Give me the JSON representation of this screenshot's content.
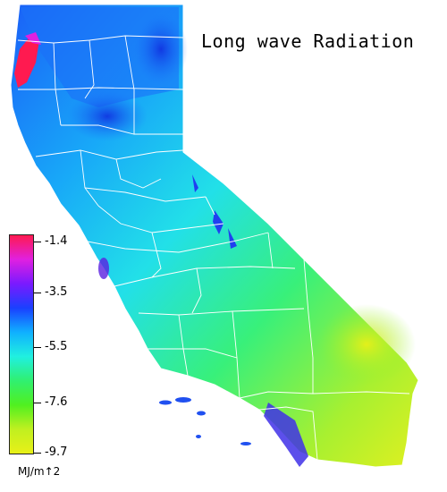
{
  "map": {
    "title": "Long wave Radiation",
    "region": "California",
    "colors": {
      "background": "#ffffff",
      "county_borders": "#ffffff",
      "high_loss": "#0a40f0",
      "mid": "#20d8f0",
      "low_loss": "#dcf020",
      "max": "#ff1a50"
    }
  },
  "legend": {
    "units": "MJ/m↑2",
    "ticks": [
      "-1.4",
      "-3.5",
      "-5.5",
      "-7.6",
      "-9.7"
    ],
    "gradient_stops": [
      "#ff1a50",
      "#e020e0",
      "#7a1aff",
      "#1a40ff",
      "#10b0ff",
      "#20f0e0",
      "#30f070",
      "#50f020",
      "#c0f020",
      "#e8f018"
    ]
  }
}
